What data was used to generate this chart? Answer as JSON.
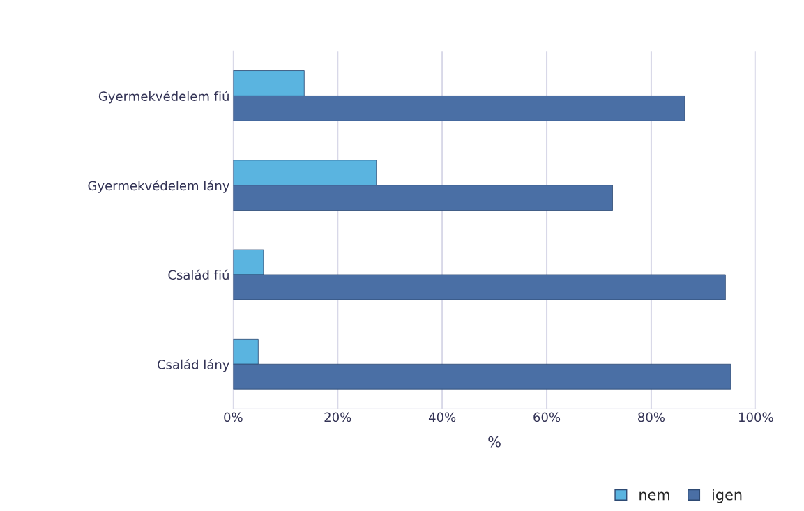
{
  "chart_data": {
    "type": "bar",
    "orientation": "horizontal",
    "xlabel": "%",
    "categories": [
      "Gyermekvédelem fiú",
      "Gyermekvédelem lány",
      "Család fiú",
      "Család lány"
    ],
    "series": [
      {
        "name": "nem",
        "color": "#5ab4e0",
        "values": [
          13.6,
          27.4,
          5.8,
          4.8
        ]
      },
      {
        "name": "igen",
        "color": "#4a6fa5",
        "values": [
          86.4,
          72.6,
          94.2,
          95.2
        ]
      }
    ],
    "xlim": [
      0,
      100
    ],
    "xticks": [
      {
        "value": 0,
        "label": "0%"
      },
      {
        "value": 20,
        "label": "20%"
      },
      {
        "value": 40,
        "label": "40%"
      },
      {
        "value": 60,
        "label": "60%"
      },
      {
        "value": 80,
        "label": "80%"
      },
      {
        "value": 100,
        "label": "100%"
      }
    ],
    "grid": "x",
    "legend": "bottom right"
  }
}
